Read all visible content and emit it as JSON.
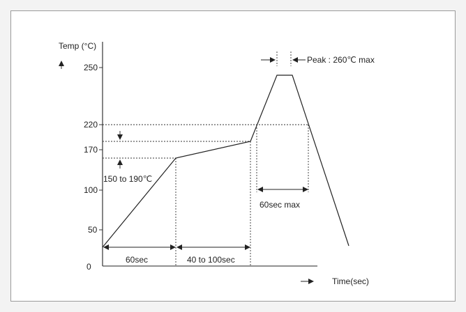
{
  "chart_data": {
    "type": "line",
    "title": "",
    "ylabel": "Temp (°C)",
    "xlabel": "Time(sec)",
    "y_ticks": [
      "250",
      "220",
      "170",
      "100",
      "50",
      "0"
    ],
    "series": [
      {
        "points": [
          [
            0,
            25
          ],
          [
            60,
            150
          ],
          [
            160,
            190
          ],
          [
            185,
            260
          ],
          [
            195,
            260
          ],
          [
            230,
            0
          ]
        ]
      }
    ],
    "annotations": {
      "preheat_range": "150 to 190℃",
      "seg1": "60sec",
      "seg2": "40 to 100sec",
      "above220": "60sec max",
      "peak": "Peak : 260℃ max"
    }
  }
}
